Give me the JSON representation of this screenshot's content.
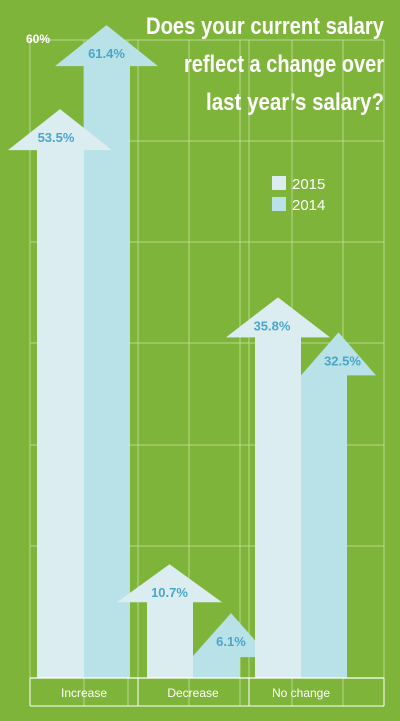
{
  "chart_data": {
    "type": "bar",
    "title": "Does your current salary reflect a change over last year’s salary?",
    "title_lines": [
      "Does your current salary",
      "reflect a change over",
      "last year’s salary?"
    ],
    "categories": [
      "Increase",
      "Decrease",
      "No change"
    ],
    "series": [
      {
        "name": "2015",
        "values": [
          53.5,
          10.7,
          35.8
        ],
        "labels": [
          "53.5%",
          "10.7%",
          "35.8%"
        ]
      },
      {
        "name": "2014",
        "values": [
          61.4,
          6.1,
          32.5
        ],
        "labels": [
          "61.4%",
          "6.1%",
          "32.5%"
        ]
      }
    ],
    "ylim": [
      0,
      60
    ],
    "y_tick_label": "60%",
    "grid": true,
    "legend_position": "top-right",
    "colors": {
      "background": "#7fb43a",
      "grid": "#b9d98f",
      "series_2015": "#dcedf1",
      "series_2014": "#b8e1e8",
      "value_label": "#4aa6c9",
      "text": "#ffffff"
    }
  }
}
